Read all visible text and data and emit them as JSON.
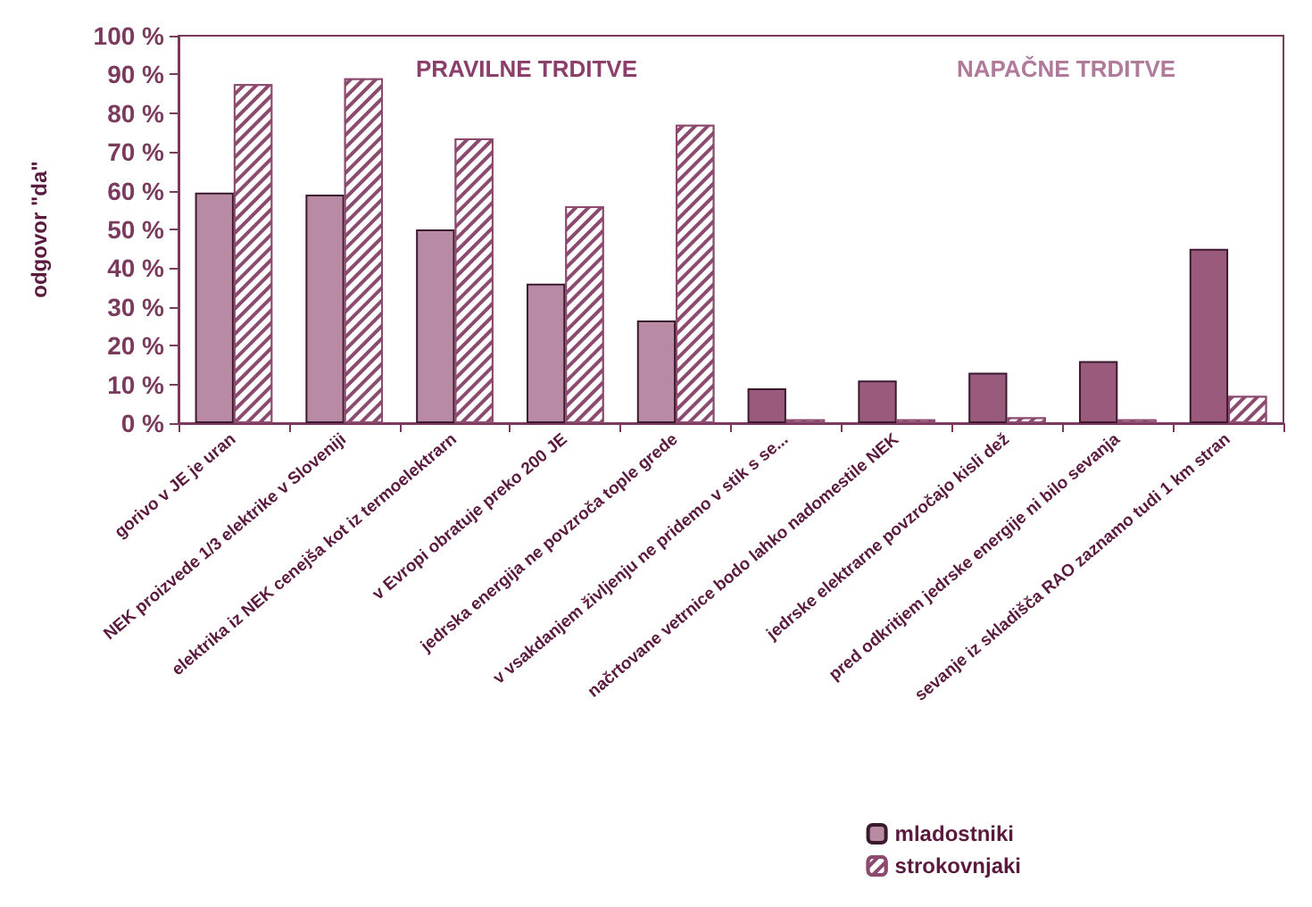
{
  "chart_data": {
    "type": "bar",
    "ylabel": "odgovor \"da\"",
    "categories": [
      "gorivo v JE je uran",
      "NEK proizvede 1/3 elektrike v Sloveniji",
      "elektrika iz NEK cenejša kot iz termoelektrarn",
      "v Evropi obratuje preko 200 JE",
      "jedrska energija ne povzroča tople grede",
      "v vsakdanjem življenju ne pridemo v stik s se...",
      "načrtovane vetrnice bodo lahko nadomestile NEK",
      "jedrske elektrarne povzročajo kisli dež",
      "pred odkritjem jedrske energije ni bilo sevanja",
      "sevanje iz skladišča RAO zaznamo tudi 1 km stran"
    ],
    "series": [
      {
        "name": "mladostniki",
        "colors": [
          "#b98aa3",
          "#b98aa3",
          "#b98aa3",
          "#b98aa3",
          "#b98aa3",
          "#9a5a7c",
          "#9a5a7c",
          "#9a5a7c",
          "#9a5a7c",
          "#9a5a7c"
        ],
        "values": [
          59.5,
          59,
          50,
          36,
          26.5,
          9,
          11,
          13,
          16,
          45
        ]
      },
      {
        "name": "strokovnjaki",
        "color": "#8b4a6e",
        "values": [
          87.5,
          89,
          73.5,
          56,
          77,
          1,
          1,
          1.5,
          1,
          7
        ]
      }
    ],
    "ylim": [
      0,
      100
    ],
    "yticks": [
      {
        "value": 0,
        "label": "0 %"
      },
      {
        "value": 10,
        "label": "10 %"
      },
      {
        "value": 20,
        "label": "20 %"
      },
      {
        "value": 30,
        "label": "30 %"
      },
      {
        "value": 40,
        "label": "40 %"
      },
      {
        "value": 50,
        "label": "50 %"
      },
      {
        "value": 60,
        "label": "60 %"
      },
      {
        "value": 70,
        "label": "70 %"
      },
      {
        "value": 80,
        "label": "80 %"
      },
      {
        "value": 90,
        "label": "90 %"
      },
      {
        "value": 100,
        "label": "100 %"
      }
    ],
    "annotations": [
      "PRAVILNE TRDITVE",
      "NAPAČNE TRDITVE"
    ],
    "grid": false,
    "legend": "bottom right"
  }
}
